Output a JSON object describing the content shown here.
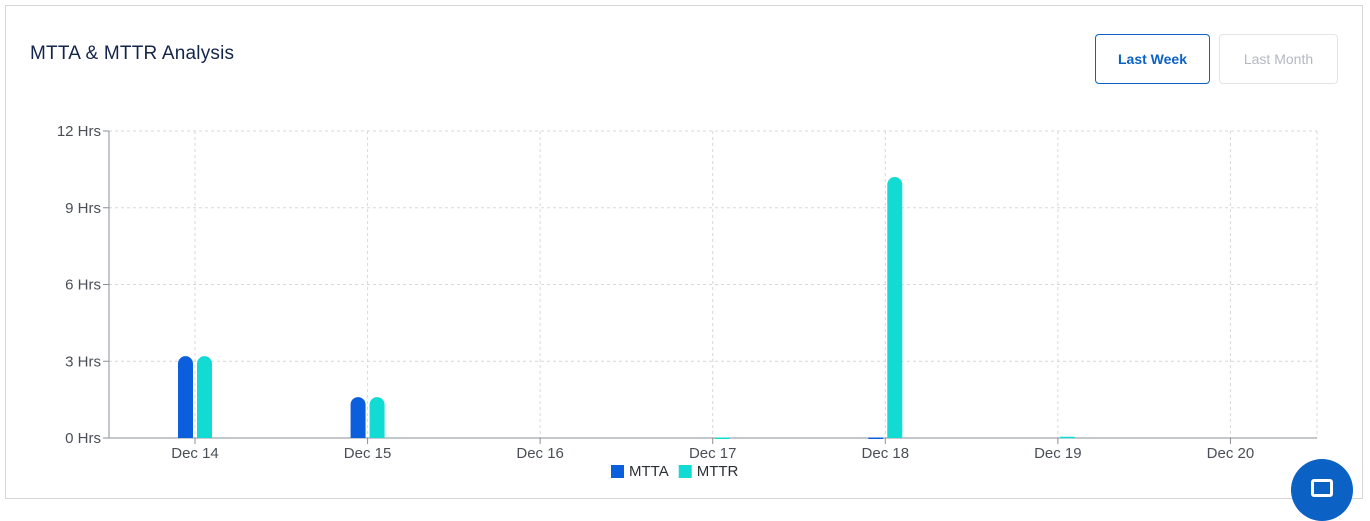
{
  "header": {
    "title": "MTTA & MTTR Analysis"
  },
  "range_buttons": {
    "week_label": "Last Week",
    "month_label": "Last Month",
    "active": "Last Week"
  },
  "colors": {
    "accent": "#0b62c4",
    "mtta": "#0b5fdc",
    "mttr": "#12dbd3",
    "title": "#13254a"
  },
  "chat": {
    "icon": "chat-bubble-icon"
  },
  "chart_data": {
    "type": "bar",
    "categories": [
      "Dec 14",
      "Dec 15",
      "Dec 16",
      "Dec 17",
      "Dec 18",
      "Dec 19",
      "Dec 20"
    ],
    "series": [
      {
        "name": "MTTA",
        "values": [
          3.2,
          1.6,
          0,
          0,
          0.02,
          0,
          0
        ]
      },
      {
        "name": "MTTR",
        "values": [
          3.2,
          1.6,
          0,
          0.02,
          10.2,
          0.05,
          0
        ]
      }
    ],
    "y_ticks": [
      0,
      3,
      6,
      9,
      12
    ],
    "y_tick_labels": [
      "0 Hrs",
      "3 Hrs",
      "6 Hrs",
      "9 Hrs",
      "12 Hrs"
    ],
    "ylim": [
      0,
      12
    ],
    "grid": true,
    "legend_position": "bottom-center"
  }
}
